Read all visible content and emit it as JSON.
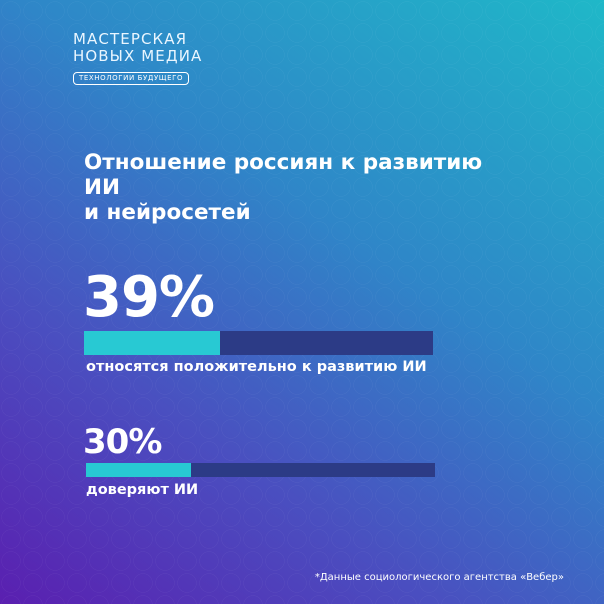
{
  "logo": {
    "line1": "МАСТЕРСКАЯ",
    "line2": "НОВЫХ МЕДИА",
    "tagline": "ТЕХНОЛОГИИ БУДУЩЕГО"
  },
  "title": {
    "line1": "Отношение россиян к развитию ИИ",
    "line2": "и нейросетей"
  },
  "stats": [
    {
      "value": "39%",
      "fraction": 0.39,
      "label": "относятся положительно к развитию ИИ"
    },
    {
      "value": "30%",
      "fraction": 0.3,
      "label": "доверяют ИИ"
    }
  ],
  "colors": {
    "bar_fill": "#28c9d3",
    "bar_track": "#2c3b86",
    "background_start": "#5a1fb0",
    "background_end": "#1fb8c8"
  },
  "footnote": "*Данные социологического агентства «Вебер»"
}
